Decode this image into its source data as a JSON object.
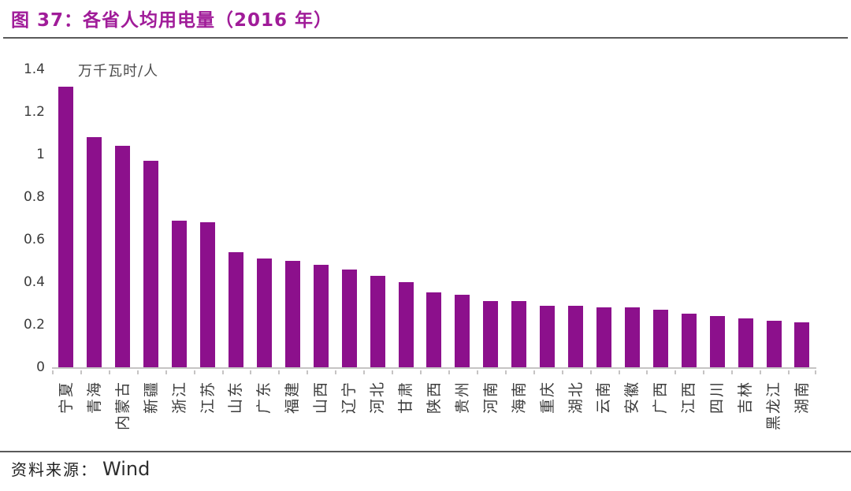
{
  "header": {
    "title": "图 37：各省人均用电量（2016 年）"
  },
  "chart_data": {
    "type": "bar",
    "title": "图 37：各省人均用电量（2016 年）",
    "unit_label": "万千瓦时/人",
    "categories": [
      "宁夏",
      "青海",
      "内蒙古",
      "新疆",
      "浙江",
      "江苏",
      "山东",
      "广东",
      "福建",
      "山西",
      "辽宁",
      "河北",
      "甘肃",
      "陕西",
      "贵州",
      "河南",
      "海南",
      "重庆",
      "湖北",
      "云南",
      "安徽",
      "广西",
      "江西",
      "四川",
      "吉林",
      "黑龙江",
      "湖南"
    ],
    "values": [
      1.32,
      1.08,
      1.04,
      0.97,
      0.69,
      0.68,
      0.54,
      0.51,
      0.5,
      0.48,
      0.46,
      0.43,
      0.4,
      0.35,
      0.34,
      0.31,
      0.31,
      0.29,
      0.29,
      0.28,
      0.28,
      0.27,
      0.25,
      0.24,
      0.23,
      0.22,
      0.21
    ],
    "ylabel": "万千瓦时/人",
    "xlabel": "",
    "ylim": [
      0,
      1.4
    ],
    "yticks": [
      "1.4",
      "1.2",
      "1",
      "0.8",
      "0.6",
      "0.4",
      "0.2",
      "0"
    ],
    "grid": false,
    "legend": "none",
    "x_label_rotation": -90
  },
  "footer": {
    "source_label": "资料来源：",
    "source_value": "Wind"
  },
  "colors": {
    "title": "#A01C99",
    "bar": "#8C108C",
    "axis": "#C6C4C4",
    "rule": "#5A5A5A",
    "tick_text": "#3B3B3B"
  }
}
